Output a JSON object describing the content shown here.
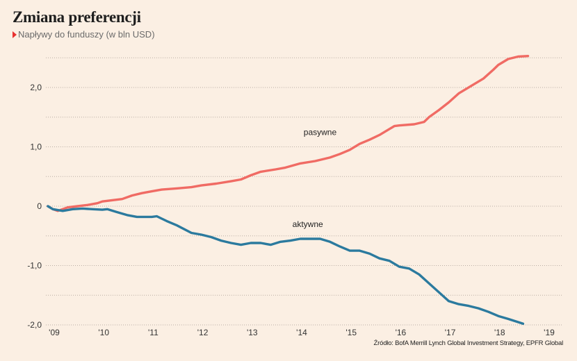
{
  "title": "Zmiana preferencji",
  "subtitle": "Napływy do funduszy (w bln USD)",
  "source": "Źródło: BofA Merrill Lynch Global Investment Strategy, EPFR Global",
  "colors": {
    "pasywne": "#f06b64",
    "aktywne": "#2b7a9e",
    "background": "#fbefe3",
    "marker": "#e8302f"
  },
  "chart_data": {
    "type": "line",
    "grid": true,
    "grid_style": "dotted horizontal",
    "ylim": [
      -2.05,
      2.6
    ],
    "xlim": [
      2008.9,
      2019.2
    ],
    "yticks": [
      {
        "value": 2.0,
        "label": "2,0"
      },
      {
        "value": 1.0,
        "label": "1,0"
      },
      {
        "value": 0,
        "label": "0"
      },
      {
        "value": -1.0,
        "label": "-1,0"
      },
      {
        "value": -2.0,
        "label": "-2,0"
      }
    ],
    "xticks": [
      {
        "value": 2009,
        "label": "'09"
      },
      {
        "value": 2010,
        "label": "'10"
      },
      {
        "value": 2011,
        "label": "'11"
      },
      {
        "value": 2012,
        "label": "'12"
      },
      {
        "value": 2013,
        "label": "'13"
      },
      {
        "value": 2014,
        "label": "'14"
      },
      {
        "value": 2015,
        "label": "'15"
      },
      {
        "value": 2016,
        "label": "'16"
      },
      {
        "value": 2017,
        "label": "'17"
      },
      {
        "value": 2018,
        "label": "'18"
      },
      {
        "value": 2019,
        "label": "'19"
      }
    ],
    "series": [
      {
        "name": "pasywne",
        "label_at": [
          2014.4,
          1.2
        ],
        "x": [
          2008.9,
          2009.0,
          2009.1,
          2009.3,
          2009.5,
          2009.7,
          2009.9,
          2010.0,
          2010.2,
          2010.4,
          2010.6,
          2010.8,
          2011.0,
          2011.2,
          2011.5,
          2011.8,
          2012.0,
          2012.3,
          2012.6,
          2012.8,
          2013.0,
          2013.2,
          2013.5,
          2013.7,
          2014.0,
          2014.3,
          2014.6,
          2014.8,
          2015.0,
          2015.2,
          2015.4,
          2015.6,
          2015.8,
          2015.9,
          2016.0,
          2016.3,
          2016.5,
          2016.6,
          2016.8,
          2017.0,
          2017.2,
          2017.5,
          2017.7,
          2017.9,
          2018.0,
          2018.2,
          2018.4,
          2018.6
        ],
        "y": [
          0.0,
          -0.05,
          -0.08,
          -0.02,
          0.0,
          0.02,
          0.05,
          0.08,
          0.1,
          0.12,
          0.18,
          0.22,
          0.25,
          0.28,
          0.3,
          0.32,
          0.35,
          0.38,
          0.42,
          0.45,
          0.52,
          0.58,
          0.62,
          0.65,
          0.72,
          0.76,
          0.82,
          0.88,
          0.95,
          1.05,
          1.12,
          1.2,
          1.3,
          1.35,
          1.36,
          1.38,
          1.42,
          1.5,
          1.62,
          1.75,
          1.9,
          2.05,
          2.15,
          2.3,
          2.38,
          2.48,
          2.52,
          2.53
        ]
      },
      {
        "name": "aktywne",
        "label_at": [
          2014.15,
          -0.35
        ],
        "x": [
          2008.9,
          2009.0,
          2009.2,
          2009.4,
          2009.6,
          2009.8,
          2010.0,
          2010.1,
          2010.3,
          2010.5,
          2010.7,
          2010.9,
          2011.0,
          2011.1,
          2011.3,
          2011.5,
          2011.8,
          2012.0,
          2012.2,
          2012.4,
          2012.6,
          2012.8,
          2013.0,
          2013.2,
          2013.4,
          2013.6,
          2013.8,
          2014.0,
          2014.2,
          2014.4,
          2014.6,
          2014.8,
          2015.0,
          2015.2,
          2015.4,
          2015.6,
          2015.8,
          2016.0,
          2016.2,
          2016.4,
          2016.6,
          2016.8,
          2017.0,
          2017.2,
          2017.4,
          2017.6,
          2017.8,
          2018.0,
          2018.2,
          2018.5
        ],
        "y": [
          0.0,
          -0.05,
          -0.08,
          -0.05,
          -0.04,
          -0.05,
          -0.06,
          -0.05,
          -0.1,
          -0.15,
          -0.18,
          -0.18,
          -0.18,
          -0.17,
          -0.25,
          -0.32,
          -0.45,
          -0.48,
          -0.52,
          -0.58,
          -0.62,
          -0.65,
          -0.62,
          -0.62,
          -0.65,
          -0.6,
          -0.58,
          -0.55,
          -0.55,
          -0.55,
          -0.6,
          -0.68,
          -0.75,
          -0.75,
          -0.8,
          -0.88,
          -0.92,
          -1.02,
          -1.05,
          -1.15,
          -1.3,
          -1.45,
          -1.6,
          -1.65,
          -1.68,
          -1.72,
          -1.78,
          -1.85,
          -1.9,
          -1.98
        ]
      }
    ]
  }
}
